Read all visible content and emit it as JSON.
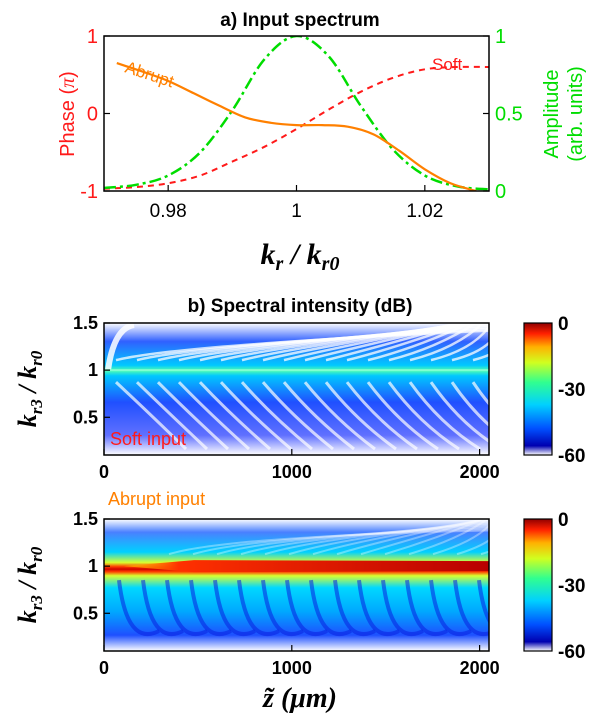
{
  "chart_data": [
    {
      "type": "line",
      "title": "a) Input spectrum",
      "xlabel_main": "k",
      "xlabel_sub": "r",
      "xlabel_den": "k",
      "xlabel_den_sub": "r0",
      "xlabel_sep": " / ",
      "ylabel_left_text": "Phase (",
      "ylabel_left_sym": "π",
      "ylabel_left_close": ")",
      "ylabel_right_line1": "Amplitude",
      "ylabel_right_line2": "(arb. units)",
      "xlim": [
        0.97,
        1.03
      ],
      "xticks": [
        "0.98",
        "1",
        "1.02"
      ],
      "xtick_values": [
        0.98,
        1.0,
        1.02
      ],
      "ylim_left": [
        -1,
        1
      ],
      "yticks_left": [
        "-1",
        "0",
        "1"
      ],
      "ylim_right": [
        0,
        1
      ],
      "yticks_right": [
        "0",
        "0.5",
        "1"
      ],
      "series": [
        {
          "name": "Abrupt",
          "axis": "left",
          "color": "#FF8000",
          "style": "solid",
          "x": [
            0.972,
            0.976,
            0.98,
            0.984,
            0.988,
            0.992,
            0.996,
            1.0,
            1.004,
            1.008,
            1.012,
            1.016,
            1.02,
            1.024,
            1.028
          ],
          "y": [
            0.65,
            0.54,
            0.42,
            0.26,
            0.1,
            -0.05,
            -0.12,
            -0.15,
            -0.15,
            -0.17,
            -0.27,
            -0.48,
            -0.72,
            -0.9,
            -1.0
          ]
        },
        {
          "name": "Soft",
          "axis": "left",
          "color": "#FF1A1A",
          "style": "dashed",
          "x": [
            0.97,
            0.975,
            0.98,
            0.985,
            0.99,
            0.995,
            1.0,
            1.005,
            1.01,
            1.015,
            1.02,
            1.025,
            1.03
          ],
          "y": [
            -0.97,
            -0.95,
            -0.9,
            -0.8,
            -0.62,
            -0.43,
            -0.2,
            0.05,
            0.28,
            0.46,
            0.57,
            0.6,
            0.6
          ]
        },
        {
          "name": "Amplitude",
          "axis": "right",
          "color": "#00DD00",
          "style": "dashdot",
          "x": [
            0.97,
            0.975,
            0.98,
            0.985,
            0.99,
            0.995,
            1.0,
            1.005,
            1.01,
            1.015,
            1.02,
            1.025,
            1.03
          ],
          "y": [
            0.02,
            0.04,
            0.1,
            0.25,
            0.52,
            0.85,
            1.0,
            0.87,
            0.55,
            0.27,
            0.1,
            0.03,
            0.01
          ]
        }
      ],
      "annotations": [
        "Abrupt",
        "Soft"
      ]
    },
    {
      "type": "heatmap",
      "title": "b) Spectral intensity (dB)",
      "annotation": "Soft input",
      "xlim": [
        0,
        2050
      ],
      "xticks": [
        "0",
        "1000",
        "2000"
      ],
      "xtick_values": [
        0,
        1000,
        2000
      ],
      "ylim": [
        0.1,
        1.5
      ],
      "yticks": [
        "1.5",
        "1",
        "0.5"
      ],
      "ytick_values": [
        1.5,
        1.0,
        0.5
      ],
      "ylabel_main": "k",
      "ylabel_sub": "r3",
      "ylabel_den": "k",
      "ylabel_den_sub": "r0",
      "ylabel_sep": " / ",
      "colorbar_range": [
        -60,
        0
      ],
      "colorbar_ticks": [
        "0",
        "-30",
        "-60"
      ],
      "colorbar_tick_values": [
        0,
        -30,
        -60
      ],
      "center_line_value": 1.0
    },
    {
      "type": "heatmap",
      "title": "",
      "annotation": "Abrupt input",
      "xlim": [
        0,
        2050
      ],
      "xticks": [
        "0",
        "1000",
        "2000"
      ],
      "xtick_values": [
        0,
        1000,
        2000
      ],
      "ylim": [
        0.1,
        1.5
      ],
      "yticks": [
        "1.5",
        "1",
        "0.5"
      ],
      "ytick_values": [
        1.5,
        1.0,
        0.5
      ],
      "ylabel_main": "k",
      "ylabel_sub": "r3",
      "ylabel_den": "k",
      "ylabel_den_sub": "r0",
      "ylabel_sep": " / ",
      "xlabel_main": "z̃ (μm)",
      "colorbar_range": [
        -60,
        0
      ],
      "colorbar_ticks": [
        "0",
        "-30",
        "-60"
      ],
      "colorbar_tick_values": [
        0,
        -30,
        -60
      ],
      "center_line_value": 1.0
    }
  ],
  "colors": {
    "soft": "#FF1A1A",
    "abrupt": "#FF8000",
    "amplitude": "#00DD00",
    "axis": "#000000"
  }
}
